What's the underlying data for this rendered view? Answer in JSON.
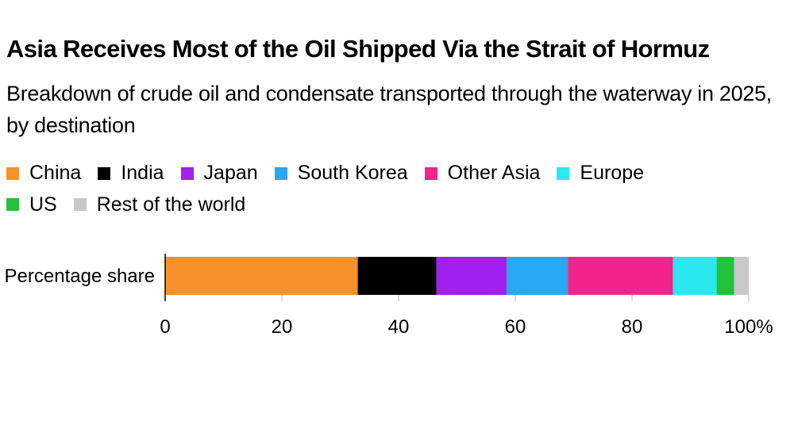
{
  "chart_data": {
    "type": "bar",
    "orientation": "horizontal",
    "stacked": true,
    "title": "Asia Receives Most of the Oil Shipped Via the Strait of Hormuz",
    "subtitle": "Breakdown of crude oil and condensate transported through the waterway in 2025, by destination",
    "categories": [
      "Percentage share"
    ],
    "series": [
      {
        "name": "China",
        "color": "#F7922A",
        "values": [
          33
        ]
      },
      {
        "name": "India",
        "color": "#000000",
        "values": [
          13.5
        ]
      },
      {
        "name": "Japan",
        "color": "#A020F0",
        "values": [
          12
        ]
      },
      {
        "name": "South Korea",
        "color": "#28A8F0",
        "values": [
          10.5
        ]
      },
      {
        "name": "Other Asia",
        "color": "#F0248C",
        "values": [
          18
        ]
      },
      {
        "name": "Europe",
        "color": "#28E8F0",
        "values": [
          7.5
        ]
      },
      {
        "name": "US",
        "color": "#22C23A",
        "values": [
          3
        ]
      },
      {
        "name": "Rest of the world",
        "color": "#C8C8C8",
        "values": [
          2.5
        ]
      }
    ],
    "xlim": [
      0,
      100
    ],
    "xticks": [
      "0",
      "20",
      "40",
      "60",
      "80",
      "100%"
    ],
    "xlabel": "",
    "ylabel": "",
    "legend_position": "top-left",
    "grid": false
  }
}
